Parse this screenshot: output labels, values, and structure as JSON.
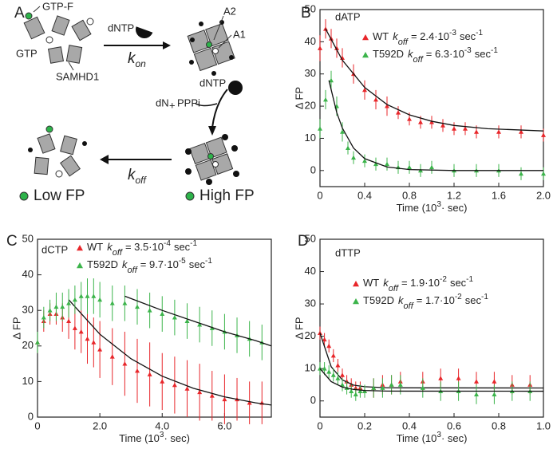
{
  "diagram": {
    "panel": "A",
    "labels": {
      "gtp_f": "GTP-F",
      "gtp": "GTP",
      "samhd1": "SAMHD1",
      "dntp1": "dNTP",
      "kon_k": "k",
      "kon_sub": "on",
      "a2": "A2",
      "a1": "A1",
      "dntp2": "dNTP",
      "dn": "dN",
      "plus": "+",
      "pppi": "PPPi",
      "koff_k": "k",
      "koff_sub": "off",
      "low_fp": "Low FP",
      "high_fp": "High FP"
    }
  },
  "chart_data": [
    {
      "type": "scatter",
      "panel": "B",
      "title": "dATP",
      "y_label": "Δ FP",
      "x_label": {
        "text": "Time (10",
        "sup": "3",
        "rest": "· sec)"
      },
      "xlim": [
        0,
        2
      ],
      "xticks": [
        0,
        0.4,
        0.8,
        1.2,
        1.6,
        {
          "value": 2,
          "label": "2.0"
        }
      ],
      "ylim": [
        -5,
        50
      ],
      "yticks": [
        0,
        10,
        20,
        30,
        40,
        50
      ],
      "series": [
        {
          "name": "WT",
          "k": "k",
          "k_sub": "off",
          "coef": "= 2.4·10",
          "exp": "-3",
          "unit": "sec",
          "unit_exp": "-1",
          "color": "#e8262a",
          "x": [
            0,
            0.05,
            0.1,
            0.15,
            0.2,
            0.3,
            0.4,
            0.5,
            0.6,
            0.7,
            0.8,
            0.9,
            1.0,
            1.1,
            1.2,
            1.3,
            1.4,
            1.6,
            1.8,
            2.0
          ],
          "values": [
            38,
            44,
            41,
            38,
            35,
            30,
            25,
            22,
            20,
            18,
            16,
            15,
            15,
            14,
            13,
            13,
            12,
            12,
            12,
            11
          ],
          "errors": [
            4,
            3,
            3,
            3,
            3,
            3,
            3,
            3,
            3,
            2,
            2,
            2,
            2,
            2,
            2,
            2,
            2,
            2,
            2,
            2
          ],
          "fit": {
            "x": [
              0.05,
              0.2,
              0.4,
              0.6,
              0.8,
              1.0,
              1.2,
              1.5,
              2.0
            ],
            "values": [
              44,
              34.3,
              25.8,
              20.5,
              17.3,
              15.3,
              14,
              13,
              12.3
            ]
          }
        },
        {
          "name": "T592D",
          "k": "k",
          "k_sub": "off",
          "coef": "= 6.3·10",
          "exp": "-3",
          "unit": "sec",
          "unit_exp": "-1",
          "color": "#3cb44b",
          "x": [
            0,
            0.05,
            0.1,
            0.15,
            0.2,
            0.25,
            0.3,
            0.4,
            0.5,
            0.6,
            0.7,
            0.8,
            0.9,
            1.0,
            1.2,
            1.4,
            1.6,
            1.8,
            2.0
          ],
          "values": [
            13,
            22,
            28,
            20,
            12,
            7,
            4,
            3,
            2,
            2,
            1,
            1,
            0,
            1,
            0,
            0,
            0,
            -1,
            -1
          ],
          "errors": [
            3,
            3,
            3,
            3,
            3,
            2,
            2,
            2,
            2,
            2,
            2,
            2,
            2,
            2,
            2,
            2,
            2,
            2,
            2
          ],
          "fit": {
            "x": [
              0.08,
              0.15,
              0.2,
              0.3,
              0.4,
              0.6,
              0.8,
              1.2,
              2.0
            ],
            "values": [
              28,
              18,
              13.2,
              7,
              3.7,
              1.1,
              0.3,
              0,
              0
            ]
          }
        }
      ]
    },
    {
      "type": "scatter",
      "panel": "C",
      "title": "dCTP",
      "y_label": "Δ FP",
      "x_label": {
        "text": "Time (10",
        "sup": "3",
        "rest": "· sec)"
      },
      "xlim": [
        0,
        7.5
      ],
      "xticks": [
        0,
        {
          "value": 2,
          "label": "2.0"
        },
        {
          "value": 4,
          "label": "4.0"
        },
        {
          "value": 6,
          "label": "6.0"
        }
      ],
      "ylim": [
        0,
        50
      ],
      "yticks": [
        0,
        10,
        20,
        30,
        40,
        50
      ],
      "series": [
        {
          "name": "WT",
          "k": "k",
          "k_sub": "off",
          "coef": "= 3.5·10",
          "exp": "-4",
          "unit": "sec",
          "unit_exp": "-1",
          "color": "#e8262a",
          "x": [
            0,
            0.2,
            0.4,
            0.6,
            0.8,
            1.0,
            1.2,
            1.4,
            1.6,
            1.8,
            2.0,
            2.4,
            2.8,
            3.2,
            3.6,
            4.0,
            4.4,
            4.8,
            5.2,
            5.6,
            6.0,
            6.4,
            6.8,
            7.2
          ],
          "values": [
            21,
            27,
            29,
            29,
            28,
            27,
            25,
            24,
            22,
            21,
            19,
            17,
            15,
            13,
            12,
            10,
            9,
            8,
            7,
            6,
            5,
            5,
            4,
            4
          ],
          "errors": [
            3,
            3,
            3,
            3,
            4,
            5,
            6,
            6,
            7,
            7,
            8,
            8,
            9,
            9,
            9,
            8,
            8,
            8,
            8,
            7,
            7,
            6,
            6,
            6
          ],
          "fit": {
            "x": [
              1,
              2,
              3,
              4,
              5,
              6,
              7,
              7.5
            ],
            "values": [
              33,
              23.3,
              16.4,
              11.5,
              8.1,
              5.7,
              4,
              3.4
            ]
          }
        },
        {
          "name": "T592D",
          "k": "k",
          "k_sub": "off",
          "coef": "= 9.7·10",
          "exp": "-5",
          "unit": "sec",
          "unit_exp": "-1",
          "color": "#3cb44b",
          "x": [
            0,
            0.2,
            0.4,
            0.6,
            0.8,
            1.0,
            1.2,
            1.4,
            1.6,
            1.8,
            2.0,
            2.4,
            2.8,
            3.2,
            3.6,
            4.0,
            4.4,
            4.8,
            5.2,
            5.6,
            6.0,
            6.4,
            6.8,
            7.2
          ],
          "values": [
            21,
            28,
            30,
            31,
            31,
            32,
            33,
            34,
            34,
            34,
            33,
            32,
            32,
            31,
            30,
            29,
            28,
            27,
            26,
            25,
            24,
            23,
            22,
            21
          ],
          "errors": [
            3,
            3,
            3,
            4,
            4,
            4,
            4,
            4,
            5,
            5,
            5,
            5,
            5,
            5,
            5,
            5,
            5,
            5,
            5,
            5,
            5,
            5,
            5,
            5
          ],
          "fit": {
            "x": [
              2.8,
              4,
              5,
              6,
              7,
              7.5
            ],
            "values": [
              34,
              30,
              27,
              24,
              21.5,
              20
            ]
          }
        }
      ]
    },
    {
      "type": "scatter",
      "panel": "D",
      "title": "dTTP",
      "y_label": "Δ FP",
      "x_label": {
        "text": "Time (10",
        "sup": "3",
        "rest": "· sec)"
      },
      "xlim": [
        0,
        1
      ],
      "xticks": [
        0,
        0.2,
        0.4,
        0.6,
        0.8,
        {
          "value": 1,
          "label": "1.0"
        }
      ],
      "ylim": [
        -5,
        50
      ],
      "yticks": [
        0,
        10,
        20,
        30,
        40,
        50
      ],
      "series": [
        {
          "name": "WT",
          "k": "k",
          "k_sub": "off",
          "coef": "= 1.9·10",
          "exp": "-2",
          "unit": "sec",
          "unit_exp": "-1",
          "color": "#e8262a",
          "x": [
            0,
            0.02,
            0.04,
            0.06,
            0.08,
            0.1,
            0.12,
            0.14,
            0.16,
            0.18,
            0.2,
            0.24,
            0.28,
            0.32,
            0.36,
            0.46,
            0.54,
            0.62,
            0.7,
            0.78,
            0.86,
            0.94
          ],
          "values": [
            21,
            19,
            17,
            14,
            11,
            8,
            6,
            5,
            4,
            4,
            3,
            4,
            5,
            5,
            6,
            6,
            7,
            7,
            6,
            6,
            5,
            5
          ],
          "errors": [
            2,
            2,
            2,
            2,
            2,
            2,
            2,
            2,
            2,
            2,
            2,
            3,
            3,
            3,
            3,
            3,
            3,
            3,
            3,
            3,
            3,
            3
          ],
          "fit": {
            "x": [
              0,
              0.05,
              0.1,
              0.15,
              0.2,
              0.3,
              1.0
            ],
            "values": [
              21,
              10.6,
              6.5,
              4.9,
              4.4,
              4.06,
              4
            ]
          }
        },
        {
          "name": "T592D",
          "k": "k",
          "k_sub": "off",
          "coef": "= 1.7·10",
          "exp": "-2",
          "unit": "sec",
          "unit_exp": "-1",
          "color": "#3cb44b",
          "x": [
            0,
            0.02,
            0.04,
            0.06,
            0.08,
            0.1,
            0.12,
            0.14,
            0.16,
            0.18,
            0.2,
            0.24,
            0.28,
            0.32,
            0.36,
            0.46,
            0.54,
            0.62,
            0.7,
            0.78,
            0.86,
            0.94
          ],
          "values": [
            10,
            10,
            9,
            8,
            7,
            5,
            4,
            3,
            2,
            3,
            3,
            4,
            4,
            5,
            5,
            4,
            3,
            3,
            2,
            2,
            3,
            3
          ],
          "errors": [
            2,
            2,
            2,
            2,
            2,
            2,
            2,
            2,
            2,
            2,
            2,
            3,
            3,
            3,
            3,
            3,
            3,
            3,
            3,
            3,
            3,
            3
          ],
          "fit": {
            "x": [
              0,
              0.05,
              0.1,
              0.15,
              0.2,
              0.3,
              1.0
            ],
            "values": [
              10,
              5.99,
              4.28,
              3.55,
              3.23,
              3.04,
              3
            ]
          }
        }
      ]
    }
  ]
}
